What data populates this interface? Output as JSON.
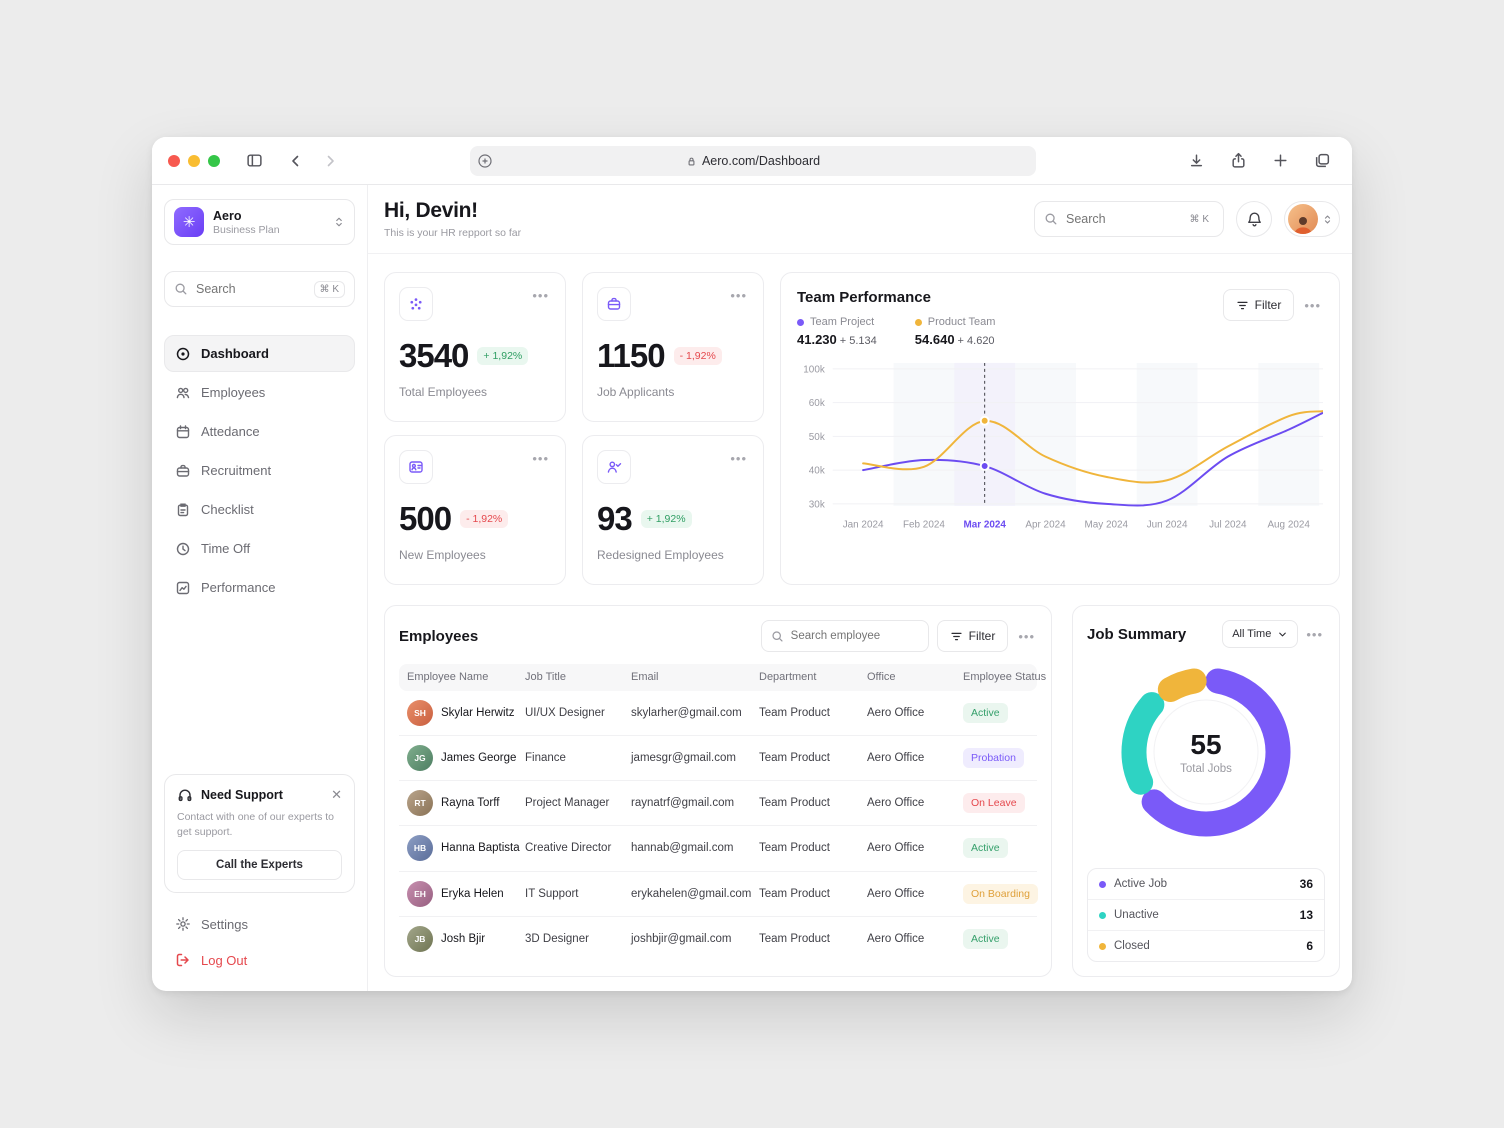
{
  "browser": {
    "url": "Aero.com/Dashboard"
  },
  "sidebar": {
    "workspace": {
      "name": "Aero",
      "plan": "Business Plan"
    },
    "search": {
      "placeholder": "Search",
      "shortcut": "⌘ K"
    },
    "nav": [
      {
        "label": "Dashboard"
      },
      {
        "label": "Employees"
      },
      {
        "label": "Attedance"
      },
      {
        "label": "Recruitment"
      },
      {
        "label": "Checklist"
      },
      {
        "label": "Time Off"
      },
      {
        "label": "Performance"
      }
    ],
    "support": {
      "title": "Need Support",
      "body": "Contact with one of our experts to get support.",
      "button": "Call the Experts"
    },
    "settings_label": "Settings",
    "logout_label": "Log Out"
  },
  "header": {
    "greeting": "Hi, Devin!",
    "subtitle": "This is your HR repport so far",
    "search_placeholder": "Search",
    "search_shortcut": "⌘ K"
  },
  "stats": [
    {
      "value": "3540",
      "delta": "+ 1,92%",
      "label": "Total Employees"
    },
    {
      "value": "1150",
      "delta": "- 1,92%",
      "label": "Job Applicants"
    },
    {
      "value": "500",
      "delta": "- 1,92%",
      "label": "New Employees"
    },
    {
      "value": "93",
      "delta": "+ 1,92%",
      "label": "Redesigned Employees"
    }
  ],
  "performance": {
    "title": "Team Performance",
    "filter_label": "Filter",
    "legend": [
      {
        "name": "Team Project",
        "value": "41.230",
        "delta": "+ 5.134",
        "color": "#7a5af8"
      },
      {
        "name": "Product Team",
        "value": "54.640",
        "delta": "+ 4.620",
        "color": "#f0b53b"
      }
    ]
  },
  "chart_data": {
    "type": "line",
    "title": "Team Performance",
    "x": [
      "Jan 2024",
      "Feb 2024",
      "Mar 2024",
      "Apr 2024",
      "May 2024",
      "Jun 2024",
      "Jul 2024",
      "Aug 2024"
    ],
    "yticks": [
      "100k",
      "60k",
      "50k",
      "40k",
      "30k"
    ],
    "ylim": [
      30000,
      100000
    ],
    "highlight_index": 2,
    "series": [
      {
        "name": "Team Project",
        "color": "#6c4cf1",
        "values": [
          40.0,
          43.0,
          41.2,
          33.0,
          30.0,
          31.0,
          44.0,
          52.0
        ],
        "edge_value": 57.0,
        "marker_value": 41.23
      },
      {
        "name": "Product Team",
        "color": "#f0b53b",
        "values": [
          42.0,
          41.0,
          54.6,
          44.0,
          38.0,
          37.0,
          47.0,
          56.0
        ],
        "edge_value": 57.5,
        "marker_value": 54.64
      }
    ],
    "unit": "thousands"
  },
  "employees": {
    "title": "Employees",
    "search_placeholder": "Search employee",
    "filter_label": "Filter",
    "columns": [
      "Employee Name",
      "Job Title",
      "Email",
      "Department",
      "Office",
      "Employee Status"
    ],
    "rows": [
      {
        "name": "Skylar Herwitz",
        "job": "UI/UX Designer",
        "email": "skylarher@gmail.com",
        "department": "Team Product",
        "office": "Aero Office",
        "status": "Active"
      },
      {
        "name": "James George",
        "job": "Finance",
        "email": "jamesgr@gmail.com",
        "department": "Team Product",
        "office": "Aero Office",
        "status": "Probation"
      },
      {
        "name": "Rayna Torff",
        "job": "Project Manager",
        "email": "raynatrf@gmail.com",
        "department": "Team Product",
        "office": "Aero Office",
        "status": "On Leave"
      },
      {
        "name": "Hanna Baptista",
        "job": "Creative Director",
        "email": "hannab@gmail.com",
        "department": "Team Product",
        "office": "Aero Office",
        "status": "Active"
      },
      {
        "name": "Eryka Helen",
        "job": "IT Support",
        "email": "erykahelen@gmail.com",
        "department": "Team Product",
        "office": "Aero Office",
        "status": "On Boarding"
      },
      {
        "name": "Josh Bjir",
        "job": "3D Designer",
        "email": "joshbjir@gmail.com",
        "department": "Team Product",
        "office": "Aero Office",
        "status": "Active"
      }
    ]
  },
  "job_summary": {
    "title": "Job Summary",
    "range_label": "All Time",
    "total": "55",
    "total_label": "Total Jobs",
    "legend": [
      {
        "label": "Active Job",
        "value": "36",
        "color": "#7a5af8"
      },
      {
        "label": "Unactive",
        "value": "13",
        "color": "#2ed3c3"
      },
      {
        "label": "Closed",
        "value": "6",
        "color": "#f0b53b"
      }
    ]
  }
}
